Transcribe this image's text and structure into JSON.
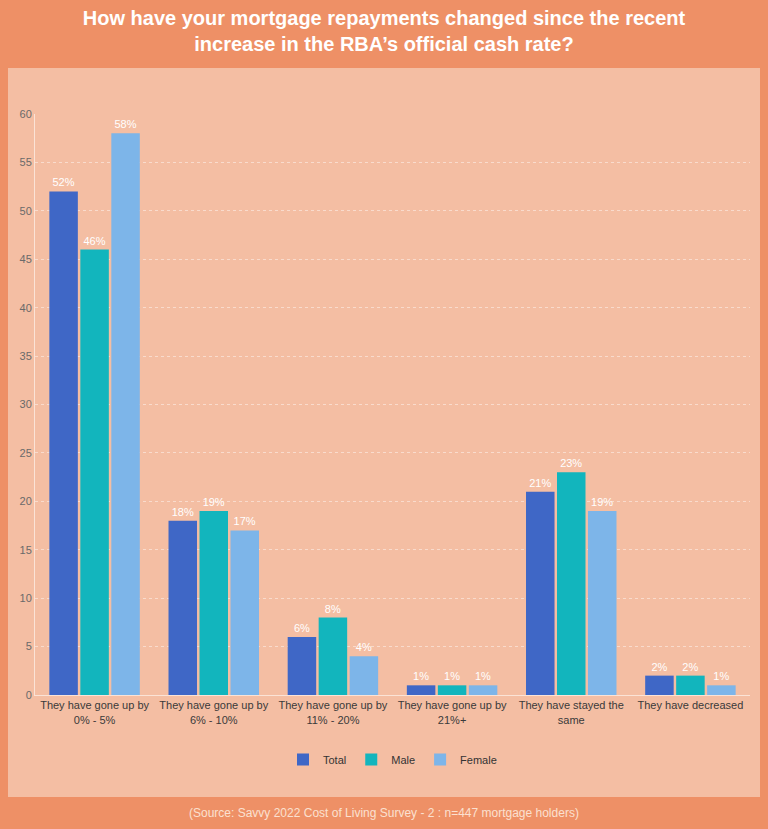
{
  "chart_data": {
    "type": "bar",
    "title": "How have your mortgage repayments changed since the recent increase in the RBA’s official cash rate?",
    "annotations": [
      "(Source: Savvy 2022 Cost of Living Survey - 2 : n=447 mortgage holders)"
    ],
    "categories": [
      "They have gone up by 0% - 5%",
      "They have gone up by 6% - 10%",
      "They have gone up by 11% - 20%",
      "They have gone up by 21%+",
      "They have stayed the same",
      "They have decreased"
    ],
    "series": [
      {
        "name": "Total",
        "color": "#3f67c6",
        "values": [
          52,
          18,
          6,
          1,
          21,
          2
        ],
        "value_labels": [
          "52%",
          "18%",
          "6%",
          "1%",
          "21%",
          "2%"
        ]
      },
      {
        "name": "Male",
        "color": "#12b5bd",
        "values": [
          46,
          19,
          8,
          1,
          23,
          2
        ],
        "value_labels": [
          "46%",
          "19%",
          "8%",
          "1%",
          "23%",
          "2%"
        ]
      },
      {
        "name": "Female",
        "color": "#7db5e9",
        "values": [
          58,
          17,
          4,
          1,
          19,
          1
        ],
        "value_labels": [
          "58%",
          "17%",
          "4%",
          "1%",
          "19%",
          "1%"
        ]
      }
    ],
    "ylim": [
      0,
      60
    ],
    "yticks": [
      0,
      5,
      10,
      15,
      20,
      25,
      30,
      35,
      40,
      45,
      50,
      55,
      60
    ],
    "grid": true,
    "legend": "bottom",
    "data_labels": true
  }
}
